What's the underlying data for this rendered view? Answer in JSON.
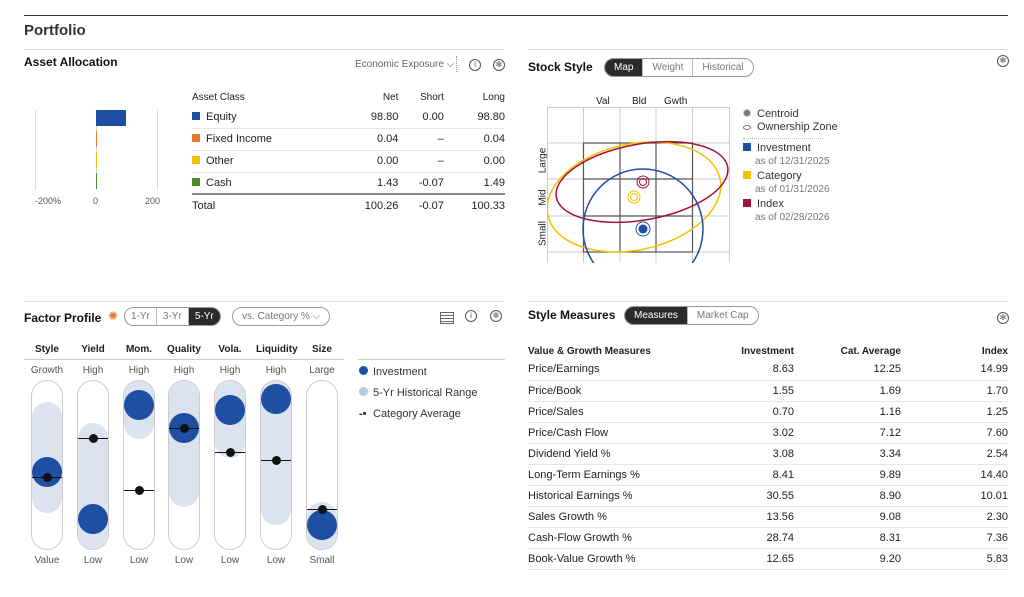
{
  "page_title": "Portfolio",
  "asset_allocation": {
    "title": "Asset Allocation",
    "view_select": "Economic Exposure",
    "axis_ticks": [
      "-200%",
      "0",
      "200"
    ],
    "columns": [
      "Asset Class",
      "Net",
      "Short",
      "Long"
    ],
    "rows": [
      {
        "name": "Equity",
        "net": "98.80",
        "short": "0.00",
        "long": "98.80",
        "color": "#1f4fa3",
        "net_value": 98.8
      },
      {
        "name": "Fixed Income",
        "net": "0.04",
        "short": "–",
        "long": "0.04",
        "color": "#e8792b",
        "net_value": 0.04
      },
      {
        "name": "Other",
        "net": "0.00",
        "short": "–",
        "long": "0.00",
        "color": "#f2c200",
        "net_value": 0.0
      },
      {
        "name": "Cash",
        "net": "1.43",
        "short": "-0.07",
        "long": "1.49",
        "color": "#4e8a2e",
        "net_value": 1.43
      }
    ],
    "total": {
      "name": "Total",
      "net": "100.26",
      "short": "-0.07",
      "long": "100.33"
    }
  },
  "stock_style": {
    "title": "Stock Style",
    "tabs": [
      "Map",
      "Weight",
      "Historical"
    ],
    "active_tab": "Map",
    "col_labels": [
      "Val",
      "Bld",
      "Gwth"
    ],
    "row_labels": [
      "Large",
      "Mid",
      "Small"
    ],
    "legend": {
      "centroid": "Centroid",
      "zone": "Ownership Zone",
      "items": [
        {
          "name": "Investment",
          "date": "as of 12/31/2025",
          "color": "#1f4fa3"
        },
        {
          "name": "Category",
          "date": "as of 01/31/2026",
          "color": "#f2c200"
        },
        {
          "name": "Index",
          "date": "as of 02/28/2026",
          "color": "#a50f3c"
        }
      ]
    }
  },
  "factor_profile": {
    "title": "Factor Profile",
    "periods": [
      "1-Yr",
      "3-Yr",
      "5-Yr"
    ],
    "active_period": "5-Yr",
    "compare_select": "vs. Category %",
    "factors": [
      {
        "name": "Style",
        "high": "Growth",
        "low": "Value",
        "range": [
          26,
          83
        ],
        "investment": 46,
        "category": 43
      },
      {
        "name": "Yield",
        "high": "High",
        "low": "Low",
        "range": [
          4,
          70
        ],
        "investment": 18,
        "category": 66
      },
      {
        "name": "Mom.",
        "high": "High",
        "low": "Low",
        "range": [
          70,
          99
        ],
        "investment": 86,
        "category": 35
      },
      {
        "name": "Quality",
        "high": "High",
        "low": "Low",
        "range": [
          30,
          96
        ],
        "investment": 72,
        "category": 72
      },
      {
        "name": "Vola.",
        "high": "High",
        "low": "Low",
        "range": [
          59,
          97
        ],
        "investment": 83,
        "category": 58
      },
      {
        "name": "Liquidity",
        "high": "High",
        "low": "Low",
        "range": [
          19,
          98
        ],
        "investment": 89,
        "category": 53
      },
      {
        "name": "Size",
        "high": "Large",
        "low": "Small",
        "range": [
          0,
          23
        ],
        "investment": 14,
        "category": 24
      }
    ],
    "legend": [
      "Investment",
      "5-Yr Historical Range",
      "Category Average"
    ]
  },
  "style_measures": {
    "title": "Style Measures",
    "tabs": [
      "Measures",
      "Market Cap"
    ],
    "active_tab": "Measures",
    "columns": [
      "Value & Growth Measures",
      "Investment",
      "Cat. Average",
      "Index"
    ],
    "rows": [
      [
        "Price/Earnings",
        "8.63",
        "12.25",
        "14.99"
      ],
      [
        "Price/Book",
        "1.55",
        "1.69",
        "1.70"
      ],
      [
        "Price/Sales",
        "0.70",
        "1.16",
        "1.25"
      ],
      [
        "Price/Cash Flow",
        "3.02",
        "7.12",
        "7.60"
      ],
      [
        "Dividend Yield %",
        "3.08",
        "3.34",
        "2.54"
      ],
      [
        "Long-Term Earnings %",
        "8.41",
        "9.89",
        "14.40"
      ],
      [
        "Historical Earnings %",
        "30.55",
        "8.90",
        "10.01"
      ],
      [
        "Sales Growth %",
        "13.56",
        "9.08",
        "2.30"
      ],
      [
        "Cash-Flow Growth %",
        "28.74",
        "8.31",
        "7.36"
      ],
      [
        "Book-Value Growth %",
        "12.65",
        "9.20",
        "5.83"
      ]
    ]
  }
}
